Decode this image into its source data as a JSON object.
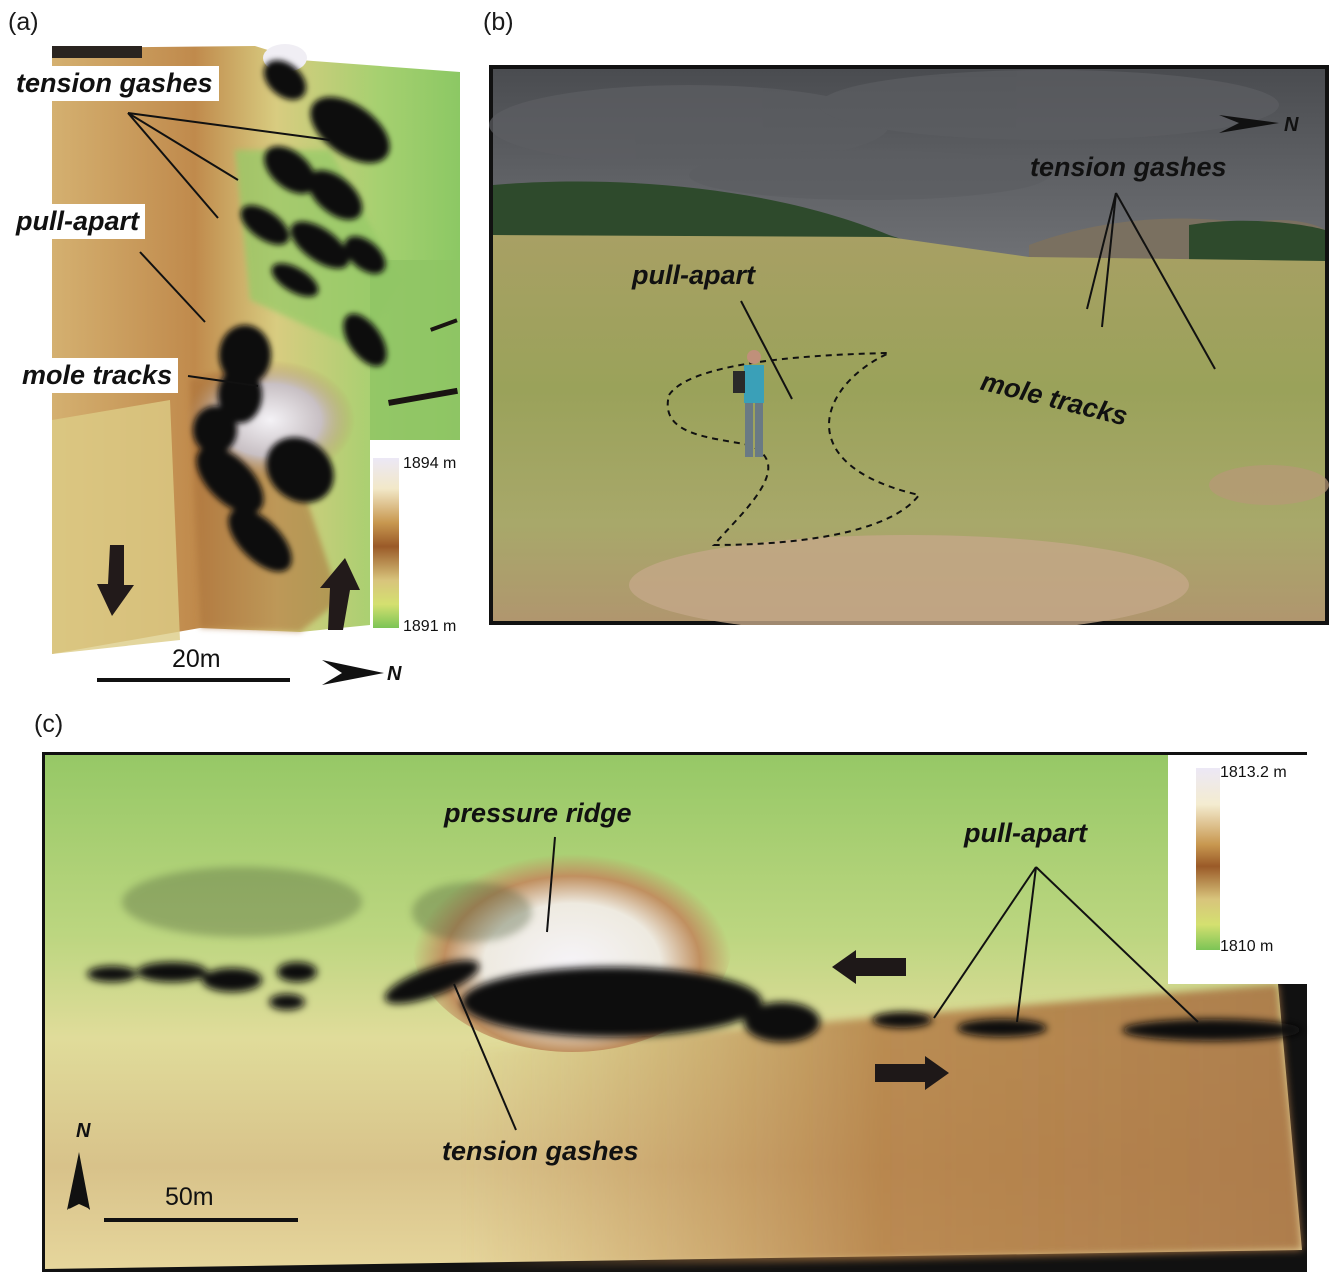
{
  "panels": {
    "a": {
      "label": "(a)",
      "annotations": {
        "tension_gashes": "tension gashes",
        "pull_apart": "pull-apart",
        "mole_tracks": "mole tracks"
      },
      "legend": {
        "max": "1894 m",
        "min": "1891 m"
      },
      "scale_bar": "20m",
      "north": "N"
    },
    "b": {
      "label": "(b)",
      "annotations": {
        "tension_gashes": "tension gashes",
        "pull_apart": "pull-apart",
        "mole_tracks": "mole tracks"
      },
      "north": "N"
    },
    "c": {
      "label": "(c)",
      "annotations": {
        "pressure_ridge": "pressure ridge",
        "pull_apart": "pull-apart",
        "tension_gashes": "tension gashes"
      },
      "legend": {
        "max": "1813.2 m",
        "min": "1810 m"
      },
      "scale_bar": "50m",
      "north": "N"
    }
  },
  "colors": {
    "low_green": "#8cc860",
    "mid_yellow": "#e8e09a",
    "mid_brown": "#b07840",
    "high_white": "#f4f2f8",
    "shadow": "#0e0a0a"
  }
}
